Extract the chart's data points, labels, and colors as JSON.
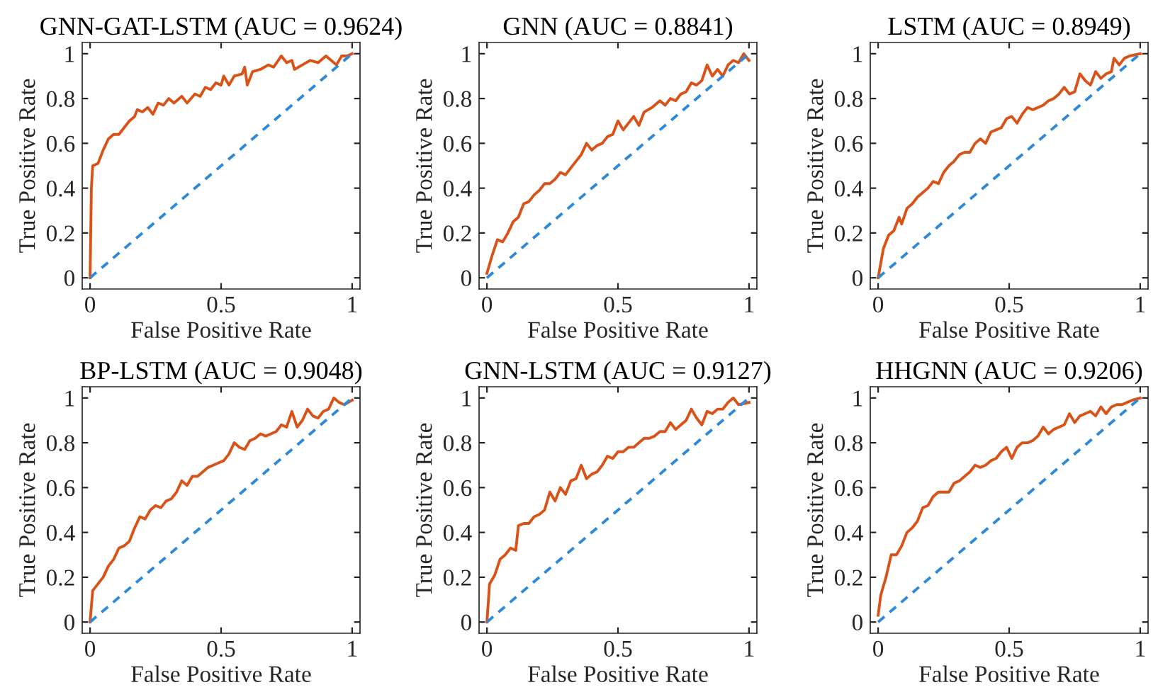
{
  "chart_data": [
    {
      "type": "line",
      "title": "GNN-GAT-LSTM (AUC = 0.9624)",
      "xlabel": "False Positive Rate",
      "ylabel": "True Positive Rate",
      "xlim": [
        -0.03,
        1.03
      ],
      "ylim": [
        -0.05,
        1.05
      ],
      "xticks": [
        0,
        0.5,
        1
      ],
      "yticks": [
        0,
        0.2,
        0.4,
        0.6,
        0.8,
        1
      ],
      "series": [
        {
          "color": "#d95319",
          "line_style": "solid",
          "x": [
            0,
            0.005,
            0.01,
            0.03,
            0.05,
            0.07,
            0.09,
            0.11,
            0.13,
            0.15,
            0.17,
            0.18,
            0.2,
            0.22,
            0.24,
            0.26,
            0.28,
            0.3,
            0.32,
            0.35,
            0.37,
            0.4,
            0.42,
            0.44,
            0.46,
            0.48,
            0.5,
            0.51,
            0.53,
            0.55,
            0.58,
            0.59,
            0.6,
            0.62,
            0.65,
            0.68,
            0.7,
            0.73,
            0.75,
            0.77,
            0.78,
            0.81,
            0.84,
            0.87,
            0.9,
            0.92,
            0.94,
            0.96,
            0.98,
            1
          ],
          "values": [
            0,
            0.4,
            0.5,
            0.51,
            0.57,
            0.62,
            0.64,
            0.64,
            0.67,
            0.7,
            0.72,
            0.75,
            0.74,
            0.76,
            0.73,
            0.78,
            0.77,
            0.8,
            0.78,
            0.81,
            0.78,
            0.82,
            0.81,
            0.85,
            0.84,
            0.87,
            0.86,
            0.9,
            0.86,
            0.9,
            0.91,
            0.94,
            0.86,
            0.92,
            0.93,
            0.95,
            0.94,
            0.99,
            0.96,
            0.97,
            0.93,
            0.95,
            0.97,
            0.96,
            0.99,
            0.97,
            0.95,
            0.99,
            0.99,
            1
          ]
        },
        {
          "color": "#2e8ad8",
          "line_style": "dashed",
          "x": [
            0,
            1
          ],
          "values": [
            0,
            1
          ]
        }
      ]
    },
    {
      "type": "line",
      "title": "GNN (AUC = 0.8841)",
      "xlabel": "False Positive Rate",
      "ylabel": "True Positive Rate",
      "xlim": [
        -0.03,
        1.03
      ],
      "ylim": [
        -0.05,
        1.05
      ],
      "xticks": [
        0,
        0.5,
        1
      ],
      "yticks": [
        0,
        0.2,
        0.4,
        0.6,
        0.8,
        1
      ],
      "series": [
        {
          "color": "#d95319",
          "line_style": "solid",
          "x": [
            0,
            0.02,
            0.04,
            0.06,
            0.08,
            0.1,
            0.12,
            0.14,
            0.16,
            0.18,
            0.2,
            0.22,
            0.24,
            0.26,
            0.28,
            0.3,
            0.32,
            0.34,
            0.36,
            0.38,
            0.4,
            0.42,
            0.44,
            0.46,
            0.48,
            0.5,
            0.52,
            0.54,
            0.56,
            0.58,
            0.6,
            0.63,
            0.66,
            0.68,
            0.7,
            0.72,
            0.74,
            0.76,
            0.78,
            0.8,
            0.82,
            0.84,
            0.86,
            0.88,
            0.9,
            0.92,
            0.94,
            0.96,
            0.98,
            1
          ],
          "values": [
            0.02,
            0.1,
            0.17,
            0.16,
            0.2,
            0.25,
            0.27,
            0.33,
            0.34,
            0.37,
            0.39,
            0.42,
            0.42,
            0.44,
            0.47,
            0.46,
            0.49,
            0.52,
            0.55,
            0.6,
            0.57,
            0.59,
            0.6,
            0.63,
            0.64,
            0.7,
            0.66,
            0.69,
            0.72,
            0.68,
            0.74,
            0.76,
            0.79,
            0.77,
            0.8,
            0.79,
            0.82,
            0.83,
            0.87,
            0.86,
            0.88,
            0.95,
            0.9,
            0.93,
            0.9,
            0.95,
            0.97,
            0.96,
            1,
            0.97
          ]
        },
        {
          "color": "#2e8ad8",
          "line_style": "dashed",
          "x": [
            0,
            1
          ],
          "values": [
            0,
            1
          ]
        }
      ]
    },
    {
      "type": "line",
      "title": "LSTM (AUC = 0.8949)",
      "xlabel": "False Positive Rate",
      "ylabel": "True Positive Rate",
      "xlim": [
        -0.03,
        1.03
      ],
      "ylim": [
        -0.05,
        1.05
      ],
      "xticks": [
        0,
        0.5,
        1
      ],
      "yticks": [
        0,
        0.2,
        0.4,
        0.6,
        0.8,
        1
      ],
      "series": [
        {
          "color": "#d95319",
          "line_style": "solid",
          "x": [
            0,
            0.02,
            0.04,
            0.06,
            0.08,
            0.09,
            0.11,
            0.13,
            0.15,
            0.17,
            0.19,
            0.21,
            0.23,
            0.25,
            0.27,
            0.29,
            0.31,
            0.33,
            0.35,
            0.37,
            0.39,
            0.41,
            0.43,
            0.45,
            0.47,
            0.49,
            0.51,
            0.53,
            0.55,
            0.57,
            0.59,
            0.61,
            0.63,
            0.65,
            0.67,
            0.69,
            0.71,
            0.73,
            0.75,
            0.77,
            0.79,
            0.81,
            0.83,
            0.85,
            0.87,
            0.89,
            0.9,
            0.92,
            0.94,
            0.96,
            1
          ],
          "values": [
            0,
            0.13,
            0.19,
            0.21,
            0.27,
            0.24,
            0.31,
            0.33,
            0.36,
            0.38,
            0.4,
            0.43,
            0.42,
            0.47,
            0.5,
            0.52,
            0.55,
            0.56,
            0.56,
            0.6,
            0.62,
            0.6,
            0.65,
            0.66,
            0.67,
            0.71,
            0.72,
            0.69,
            0.73,
            0.76,
            0.75,
            0.76,
            0.77,
            0.79,
            0.8,
            0.82,
            0.85,
            0.82,
            0.83,
            0.91,
            0.88,
            0.86,
            0.92,
            0.89,
            0.91,
            0.92,
            0.98,
            0.95,
            0.98,
            0.99,
            1
          ]
        },
        {
          "color": "#2e8ad8",
          "line_style": "dashed",
          "x": [
            0,
            1
          ],
          "values": [
            0,
            1
          ]
        }
      ]
    },
    {
      "type": "line",
      "title": "BP-LSTM (AUC = 0.9048)",
      "xlabel": "False Positive Rate",
      "ylabel": "True Positive Rate",
      "xlim": [
        -0.03,
        1.03
      ],
      "ylim": [
        -0.05,
        1.05
      ],
      "xticks": [
        0,
        0.5,
        1
      ],
      "yticks": [
        0,
        0.2,
        0.4,
        0.6,
        0.8,
        1
      ],
      "series": [
        {
          "color": "#d95319",
          "line_style": "solid",
          "x": [
            0,
            0.01,
            0.03,
            0.05,
            0.07,
            0.09,
            0.11,
            0.13,
            0.15,
            0.17,
            0.19,
            0.21,
            0.23,
            0.25,
            0.27,
            0.29,
            0.31,
            0.33,
            0.35,
            0.37,
            0.39,
            0.41,
            0.43,
            0.45,
            0.47,
            0.49,
            0.51,
            0.53,
            0.55,
            0.57,
            0.59,
            0.61,
            0.63,
            0.65,
            0.67,
            0.69,
            0.71,
            0.73,
            0.75,
            0.77,
            0.79,
            0.81,
            0.83,
            0.85,
            0.87,
            0.89,
            0.91,
            0.93,
            0.95,
            0.97,
            1
          ],
          "values": [
            0,
            0.14,
            0.17,
            0.2,
            0.25,
            0.28,
            0.33,
            0.34,
            0.36,
            0.42,
            0.47,
            0.46,
            0.5,
            0.52,
            0.51,
            0.54,
            0.55,
            0.58,
            0.63,
            0.61,
            0.65,
            0.65,
            0.67,
            0.69,
            0.7,
            0.71,
            0.72,
            0.75,
            0.8,
            0.78,
            0.77,
            0.81,
            0.82,
            0.84,
            0.83,
            0.84,
            0.85,
            0.88,
            0.87,
            0.94,
            0.87,
            0.9,
            0.95,
            0.92,
            0.91,
            0.94,
            0.95,
            1,
            0.98,
            0.97,
            0.99
          ]
        },
        {
          "color": "#2e8ad8",
          "line_style": "dashed",
          "x": [
            0,
            1
          ],
          "values": [
            0,
            1
          ]
        }
      ]
    },
    {
      "type": "line",
      "title": "GNN-LSTM (AUC = 0.9127)",
      "xlabel": "False Positive Rate",
      "ylabel": "True Positive Rate",
      "xlim": [
        -0.03,
        1.03
      ],
      "ylim": [
        -0.05,
        1.05
      ],
      "xticks": [
        0,
        0.5,
        1
      ],
      "yticks": [
        0,
        0.2,
        0.4,
        0.6,
        0.8,
        1
      ],
      "series": [
        {
          "color": "#d95319",
          "line_style": "solid",
          "x": [
            0,
            0.01,
            0.03,
            0.05,
            0.07,
            0.09,
            0.11,
            0.12,
            0.14,
            0.16,
            0.18,
            0.2,
            0.22,
            0.24,
            0.26,
            0.28,
            0.3,
            0.32,
            0.34,
            0.36,
            0.38,
            0.4,
            0.42,
            0.44,
            0.46,
            0.48,
            0.5,
            0.52,
            0.54,
            0.56,
            0.58,
            0.6,
            0.62,
            0.64,
            0.66,
            0.68,
            0.7,
            0.72,
            0.74,
            0.76,
            0.78,
            0.8,
            0.82,
            0.84,
            0.86,
            0.88,
            0.9,
            0.92,
            0.94,
            0.96,
            1
          ],
          "values": [
            0,
            0.17,
            0.21,
            0.28,
            0.3,
            0.33,
            0.32,
            0.43,
            0.44,
            0.44,
            0.47,
            0.48,
            0.5,
            0.58,
            0.54,
            0.6,
            0.57,
            0.63,
            0.64,
            0.7,
            0.64,
            0.66,
            0.67,
            0.7,
            0.74,
            0.73,
            0.76,
            0.76,
            0.78,
            0.78,
            0.8,
            0.82,
            0.82,
            0.83,
            0.85,
            0.85,
            0.89,
            0.86,
            0.88,
            0.9,
            0.95,
            0.91,
            0.88,
            0.94,
            0.93,
            0.95,
            0.95,
            0.98,
            1,
            0.97,
            0.98
          ]
        },
        {
          "color": "#2e8ad8",
          "line_style": "dashed",
          "x": [
            0,
            1
          ],
          "values": [
            0,
            1
          ]
        }
      ]
    },
    {
      "type": "line",
      "title": "HHGNN (AUC = 0.9206)",
      "xlabel": "False Positive Rate",
      "ylabel": "True Positive Rate",
      "xlim": [
        -0.03,
        1.03
      ],
      "ylim": [
        -0.05,
        1.05
      ],
      "xticks": [
        0,
        0.5,
        1
      ],
      "yticks": [
        0,
        0.2,
        0.4,
        0.6,
        0.8,
        1
      ],
      "series": [
        {
          "color": "#d95319",
          "line_style": "solid",
          "x": [
            0,
            0.01,
            0.03,
            0.05,
            0.07,
            0.09,
            0.11,
            0.13,
            0.15,
            0.17,
            0.19,
            0.21,
            0.23,
            0.25,
            0.27,
            0.29,
            0.31,
            0.33,
            0.35,
            0.37,
            0.39,
            0.41,
            0.43,
            0.45,
            0.47,
            0.49,
            0.51,
            0.53,
            0.55,
            0.57,
            0.59,
            0.61,
            0.63,
            0.65,
            0.67,
            0.69,
            0.71,
            0.73,
            0.75,
            0.77,
            0.79,
            0.81,
            0.83,
            0.85,
            0.87,
            0.89,
            0.91,
            0.93,
            0.95,
            0.97,
            1
          ],
          "values": [
            0.03,
            0.12,
            0.2,
            0.3,
            0.3,
            0.34,
            0.4,
            0.42,
            0.45,
            0.51,
            0.52,
            0.56,
            0.58,
            0.58,
            0.58,
            0.62,
            0.63,
            0.65,
            0.67,
            0.7,
            0.69,
            0.7,
            0.72,
            0.73,
            0.76,
            0.78,
            0.73,
            0.78,
            0.8,
            0.8,
            0.81,
            0.83,
            0.87,
            0.84,
            0.86,
            0.87,
            0.88,
            0.93,
            0.89,
            0.92,
            0.93,
            0.94,
            0.92,
            0.96,
            0.93,
            0.96,
            0.97,
            0.97,
            0.98,
            0.99,
            1
          ]
        },
        {
          "color": "#2e8ad8",
          "line_style": "dashed",
          "x": [
            0,
            1
          ],
          "values": [
            0,
            1
          ]
        }
      ]
    }
  ]
}
